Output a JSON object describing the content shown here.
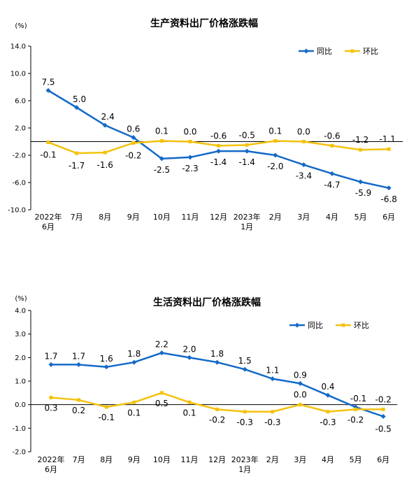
{
  "colors": {
    "yoy": "#1469C7",
    "mom": "#F4C20D",
    "axis": "#000000"
  },
  "chart_data": [
    {
      "type": "line",
      "title": "生产资料出厂价格涨跌幅",
      "unit_label": "(%)",
      "ylim": [
        -10.0,
        14.0
      ],
      "yticks": [
        "14.0",
        "10.0",
        "6.0",
        "2.0",
        "-2.0",
        "-6.0",
        "-10.0"
      ],
      "categories": [
        [
          "2022年",
          "6月"
        ],
        [
          "7月"
        ],
        [
          "8月"
        ],
        [
          "9月"
        ],
        [
          "10月"
        ],
        [
          "11月"
        ],
        [
          "12月"
        ],
        [
          "2023年",
          "1月"
        ],
        [
          "2月"
        ],
        [
          "3月"
        ],
        [
          "4月"
        ],
        [
          "5月"
        ],
        [
          "6月"
        ]
      ],
      "grid": false,
      "legend_position": "top-right",
      "series": [
        {
          "name": "同比",
          "values": [
            7.5,
            5.0,
            2.4,
            0.6,
            -2.5,
            -2.3,
            -1.4,
            -1.4,
            -2.0,
            -3.4,
            -4.7,
            -5.9,
            -6.8
          ],
          "labels": [
            "7.5",
            "5.0",
            "2.4",
            "0.6",
            "-2.5",
            "-2.3",
            "-1.4",
            "-1.4",
            "-2.0",
            "-3.4",
            "-4.7",
            "-5.9",
            "-6.8"
          ]
        },
        {
          "name": "环比",
          "values": [
            -0.1,
            -1.7,
            -1.6,
            -0.2,
            0.1,
            0.0,
            -0.6,
            -0.5,
            0.1,
            0.0,
            -0.6,
            -1.2,
            -1.1
          ],
          "labels": [
            "-0.1",
            "-1.7",
            "-1.6",
            "-0.2",
            "0.1",
            "0.0",
            "-0.6",
            "-0.5",
            "0.1",
            "0.0",
            "-0.6",
            "-1.2",
            "-1.1"
          ]
        }
      ]
    },
    {
      "type": "line",
      "title": "生活资料出厂价格涨跌幅",
      "unit_label": "(%)",
      "ylim": [
        -2.0,
        4.0
      ],
      "yticks": [
        "4.0",
        "3.0",
        "2.0",
        "1.0",
        "0.0",
        "-1.0",
        "-2.0"
      ],
      "categories": [
        [
          "2022年",
          "6月"
        ],
        [
          "7月"
        ],
        [
          "8月"
        ],
        [
          "9月"
        ],
        [
          "10月"
        ],
        [
          "11月"
        ],
        [
          "12月"
        ],
        [
          "2023年",
          "1月"
        ],
        [
          "2月"
        ],
        [
          "3月"
        ],
        [
          "4月"
        ],
        [
          "5月"
        ],
        [
          "6月"
        ]
      ],
      "grid": false,
      "legend_position": "top-right",
      "series": [
        {
          "name": "同比",
          "values": [
            1.7,
            1.7,
            1.6,
            1.8,
            2.2,
            2.0,
            1.8,
            1.5,
            1.1,
            0.9,
            0.4,
            -0.1,
            -0.5
          ],
          "labels": [
            "1.7",
            "1.7",
            "1.6",
            "1.8",
            "2.2",
            "2.0",
            "1.8",
            "1.5",
            "1.1",
            "0.9",
            "0.4",
            "-0.1",
            "-0.5"
          ]
        },
        {
          "name": "环比",
          "values": [
            0.3,
            0.2,
            -0.1,
            0.1,
            0.5,
            0.1,
            -0.2,
            -0.3,
            -0.3,
            0.0,
            -0.3,
            -0.2,
            -0.2
          ],
          "labels": [
            "0.3",
            "0.2",
            "-0.1",
            "0.1",
            "0.5",
            "0.1",
            "-0.2",
            "-0.3",
            "-0.3",
            "0.0",
            "-0.3",
            "-0.2",
            "-0.2"
          ]
        }
      ]
    }
  ]
}
